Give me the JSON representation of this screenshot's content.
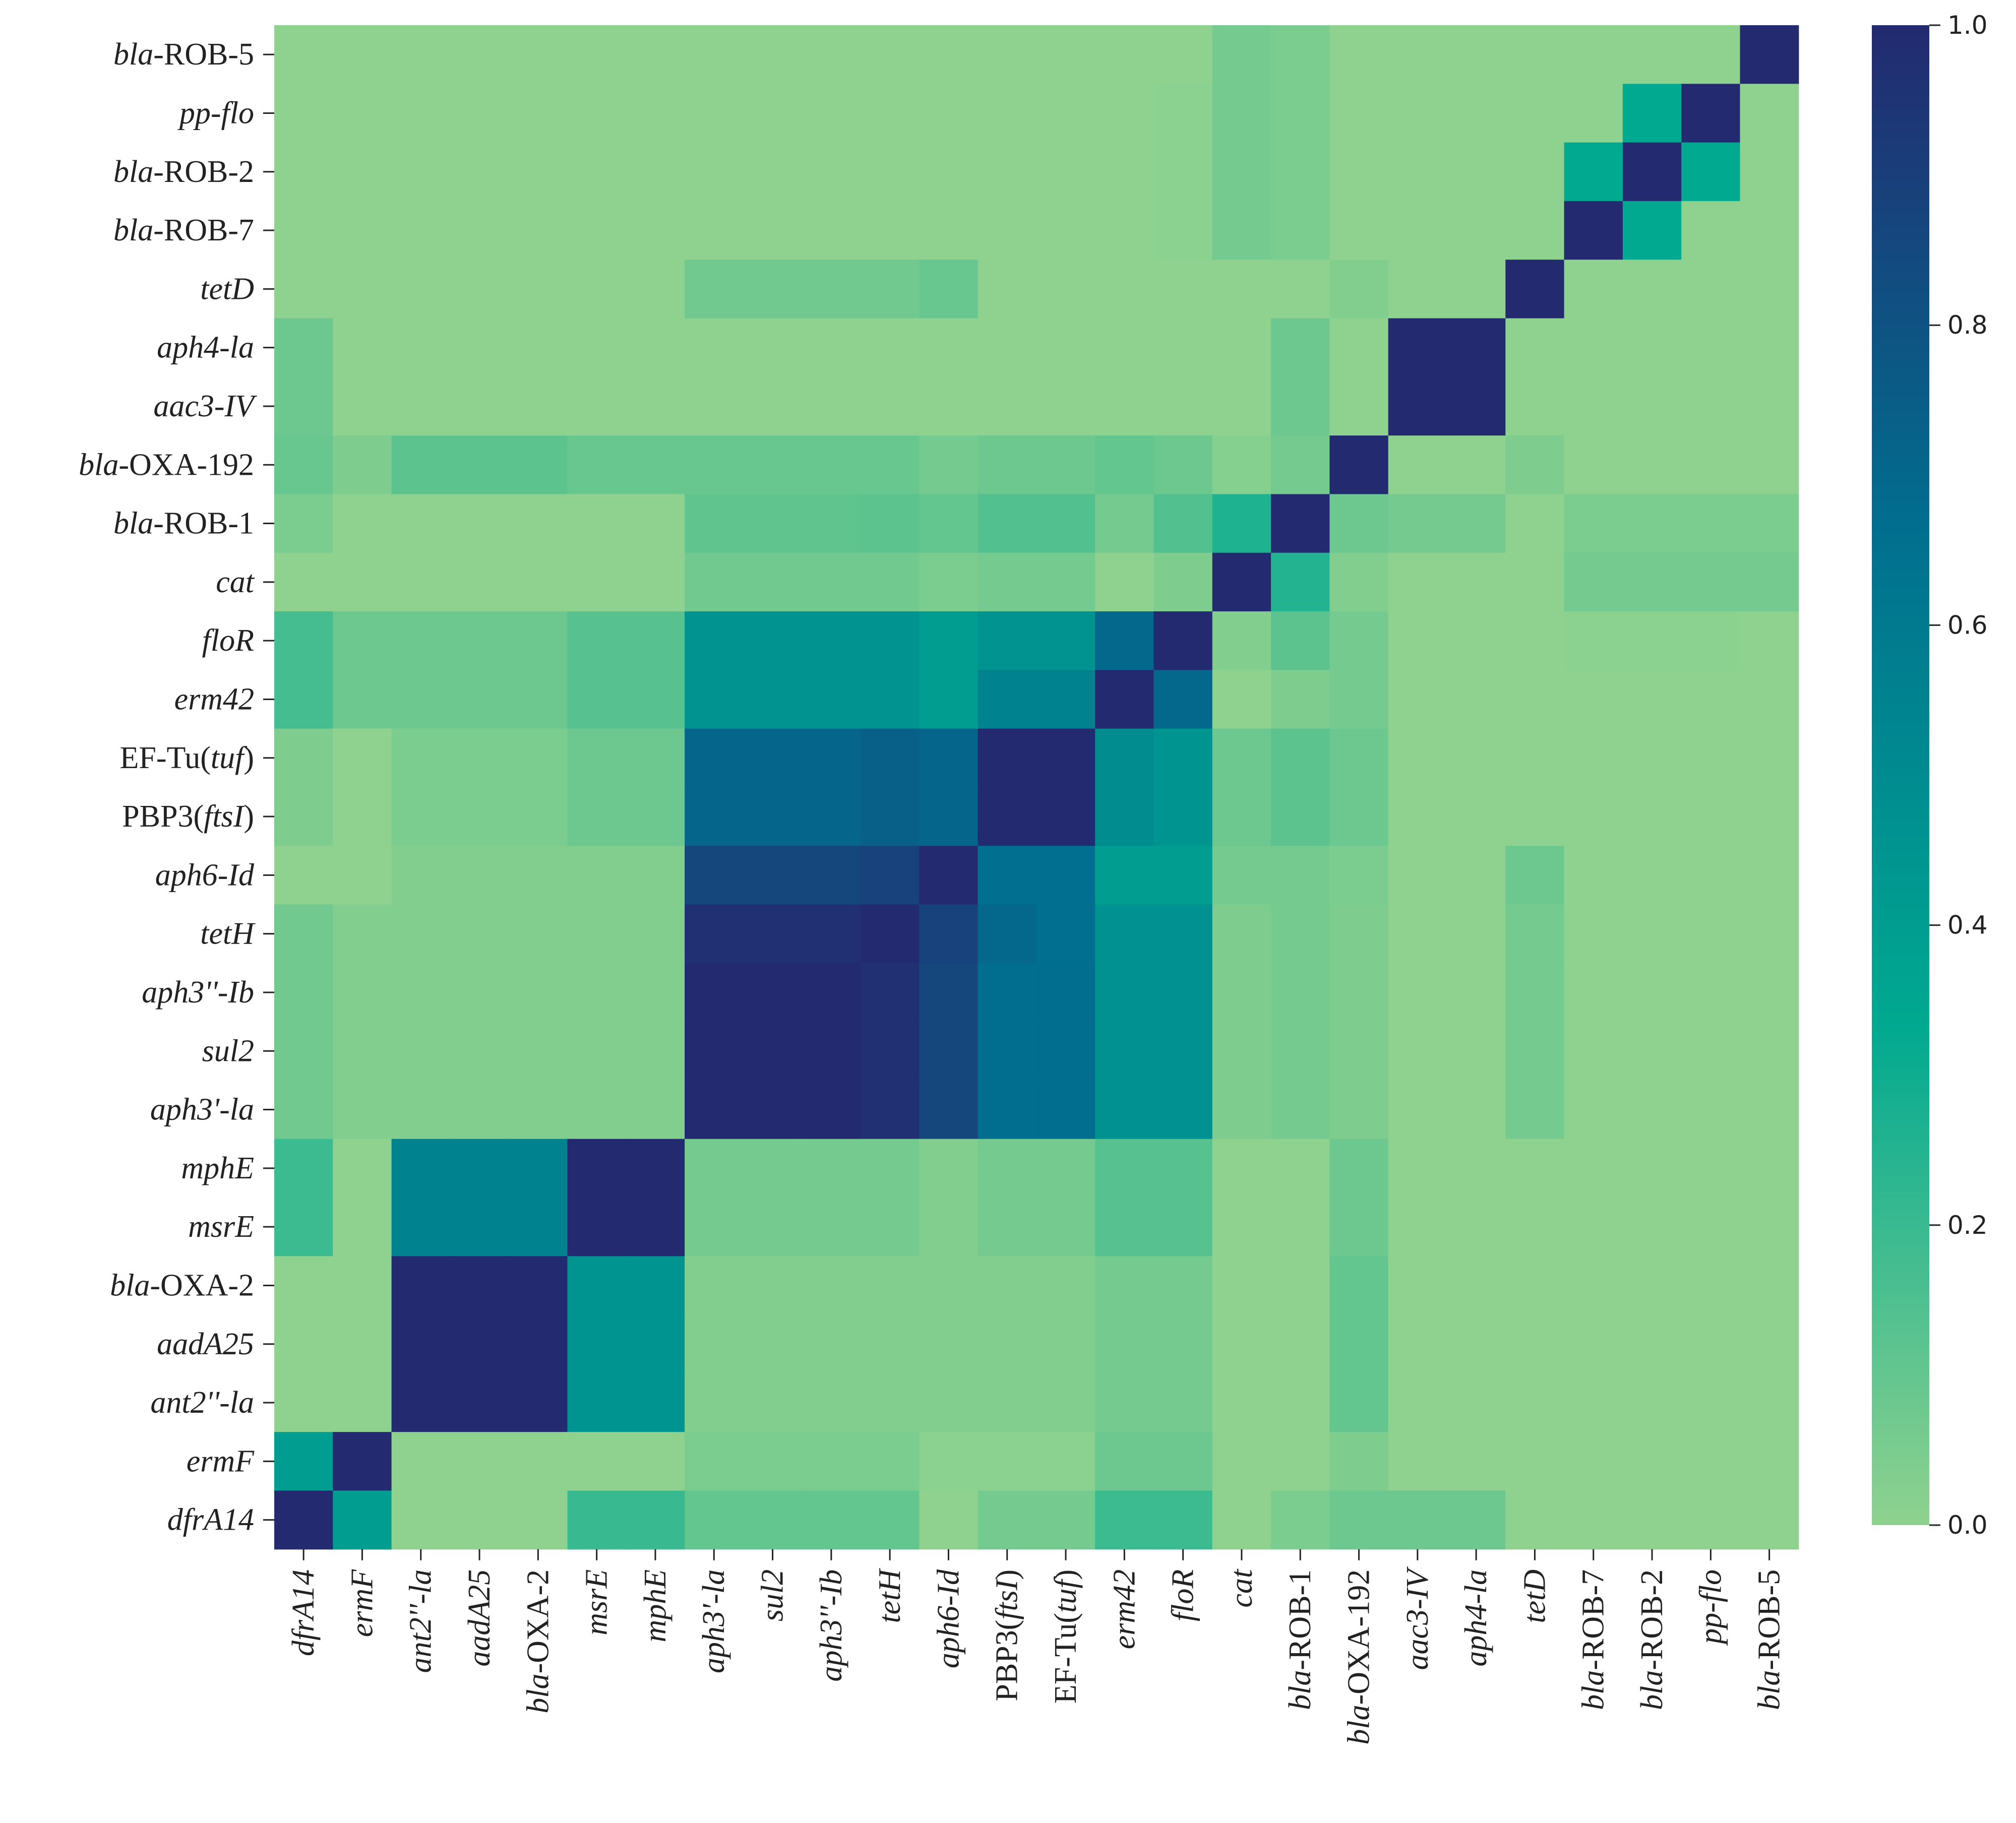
{
  "chart_data": {
    "type": "heatmap",
    "title": "",
    "xlabel": "",
    "ylabel": "",
    "x_labels": [
      {
        "parts": [
          {
            "t": "dfrA14",
            "i": true
          }
        ]
      },
      {
        "parts": [
          {
            "t": "ermF",
            "i": true
          }
        ]
      },
      {
        "parts": [
          {
            "t": "ant2''-la",
            "i": true
          }
        ]
      },
      {
        "parts": [
          {
            "t": "aadA25",
            "i": true
          }
        ]
      },
      {
        "parts": [
          {
            "t": "bla",
            "i": true
          },
          {
            "t": "-OXA-2",
            "i": false
          }
        ]
      },
      {
        "parts": [
          {
            "t": "msrE",
            "i": true
          }
        ]
      },
      {
        "parts": [
          {
            "t": "mphE",
            "i": true
          }
        ]
      },
      {
        "parts": [
          {
            "t": "aph3'-la",
            "i": true
          }
        ]
      },
      {
        "parts": [
          {
            "t": "sul2",
            "i": true
          }
        ]
      },
      {
        "parts": [
          {
            "t": "aph3''-Ib",
            "i": true
          }
        ]
      },
      {
        "parts": [
          {
            "t": "tetH",
            "i": true
          }
        ]
      },
      {
        "parts": [
          {
            "t": "aph6-Id",
            "i": true
          }
        ]
      },
      {
        "parts": [
          {
            "t": "PBP3(",
            "i": false
          },
          {
            "t": "ftsI",
            "i": true
          },
          {
            "t": ")",
            "i": false
          }
        ]
      },
      {
        "parts": [
          {
            "t": "EF-Tu(",
            "i": false
          },
          {
            "t": "tuf",
            "i": true
          },
          {
            "t": ")",
            "i": false
          }
        ]
      },
      {
        "parts": [
          {
            "t": "erm42",
            "i": true
          }
        ]
      },
      {
        "parts": [
          {
            "t": "floR",
            "i": true
          }
        ]
      },
      {
        "parts": [
          {
            "t": "cat",
            "i": true
          }
        ]
      },
      {
        "parts": [
          {
            "t": "bla",
            "i": true
          },
          {
            "t": "-ROB-1",
            "i": false
          }
        ]
      },
      {
        "parts": [
          {
            "t": "bla",
            "i": true
          },
          {
            "t": "-OXA-192",
            "i": false
          }
        ]
      },
      {
        "parts": [
          {
            "t": "aac3-IV",
            "i": true
          }
        ]
      },
      {
        "parts": [
          {
            "t": "aph4-la",
            "i": true
          }
        ]
      },
      {
        "parts": [
          {
            "t": "tetD",
            "i": true
          }
        ]
      },
      {
        "parts": [
          {
            "t": "bla",
            "i": true
          },
          {
            "t": "-ROB-7",
            "i": false
          }
        ]
      },
      {
        "parts": [
          {
            "t": "bla",
            "i": true
          },
          {
            "t": "-ROB-2",
            "i": false
          }
        ]
      },
      {
        "parts": [
          {
            "t": "pp-flo",
            "i": true
          }
        ]
      },
      {
        "parts": [
          {
            "t": "bla",
            "i": true
          },
          {
            "t": "-ROB-5",
            "i": false
          }
        ]
      }
    ],
    "y_labels": [
      {
        "parts": [
          {
            "t": "bla",
            "i": true
          },
          {
            "t": "-ROB-5",
            "i": false
          }
        ]
      },
      {
        "parts": [
          {
            "t": "pp-flo",
            "i": true
          }
        ]
      },
      {
        "parts": [
          {
            "t": "bla",
            "i": true
          },
          {
            "t": "-ROB-2",
            "i": false
          }
        ]
      },
      {
        "parts": [
          {
            "t": "bla",
            "i": true
          },
          {
            "t": "-ROB-7",
            "i": false
          }
        ]
      },
      {
        "parts": [
          {
            "t": "tetD",
            "i": true
          }
        ]
      },
      {
        "parts": [
          {
            "t": "aph4-la",
            "i": true
          }
        ]
      },
      {
        "parts": [
          {
            "t": "aac3-IV",
            "i": true
          }
        ]
      },
      {
        "parts": [
          {
            "t": "bla",
            "i": true
          },
          {
            "t": "-OXA-192",
            "i": false
          }
        ]
      },
      {
        "parts": [
          {
            "t": "bla",
            "i": true
          },
          {
            "t": "-ROB-1",
            "i": false
          }
        ]
      },
      {
        "parts": [
          {
            "t": "cat",
            "i": true
          }
        ]
      },
      {
        "parts": [
          {
            "t": "floR",
            "i": true
          }
        ]
      },
      {
        "parts": [
          {
            "t": "erm42",
            "i": true
          }
        ]
      },
      {
        "parts": [
          {
            "t": "EF-Tu(",
            "i": false
          },
          {
            "t": "tuf",
            "i": true
          },
          {
            "t": ")",
            "i": false
          }
        ]
      },
      {
        "parts": [
          {
            "t": "PBP3(",
            "i": false
          },
          {
            "t": "ftsI",
            "i": true
          },
          {
            "t": ")",
            "i": false
          }
        ]
      },
      {
        "parts": [
          {
            "t": "aph6-Id",
            "i": true
          }
        ]
      },
      {
        "parts": [
          {
            "t": "tetH",
            "i": true
          }
        ]
      },
      {
        "parts": [
          {
            "t": "aph3''-Ib",
            "i": true
          }
        ]
      },
      {
        "parts": [
          {
            "t": "sul2",
            "i": true
          }
        ]
      },
      {
        "parts": [
          {
            "t": "aph3'-la",
            "i": true
          }
        ]
      },
      {
        "parts": [
          {
            "t": "mphE",
            "i": true
          }
        ]
      },
      {
        "parts": [
          {
            "t": "msrE",
            "i": true
          }
        ]
      },
      {
        "parts": [
          {
            "t": "bla",
            "i": true
          },
          {
            "t": "-OXA-2",
            "i": false
          }
        ]
      },
      {
        "parts": [
          {
            "t": "aadA25",
            "i": true
          }
        ]
      },
      {
        "parts": [
          {
            "t": "ant2''-la",
            "i": true
          }
        ]
      },
      {
        "parts": [
          {
            "t": "ermF",
            "i": true
          }
        ]
      },
      {
        "parts": [
          {
            "t": "dfrA14",
            "i": true
          }
        ]
      }
    ],
    "values": [
      [
        0.0,
        0.0,
        0.0,
        0.0,
        0.0,
        0.0,
        0.0,
        0.0,
        0.0,
        0.0,
        0.0,
        0.0,
        0.0,
        0.0,
        0.0,
        0.0,
        0.06,
        0.05,
        0.0,
        0.0,
        0.0,
        0.0,
        0.0,
        0.0,
        0.0,
        1.0
      ],
      [
        0.0,
        0.0,
        0.0,
        0.0,
        0.0,
        0.0,
        0.0,
        0.0,
        0.0,
        0.0,
        0.0,
        0.0,
        0.0,
        0.0,
        0.0,
        0.01,
        0.06,
        0.05,
        0.0,
        0.0,
        0.0,
        0.0,
        0.0,
        0.33,
        1.0,
        0.0
      ],
      [
        0.0,
        0.0,
        0.0,
        0.0,
        0.0,
        0.0,
        0.0,
        0.0,
        0.0,
        0.0,
        0.0,
        0.0,
        0.0,
        0.0,
        0.0,
        0.01,
        0.06,
        0.05,
        0.0,
        0.0,
        0.0,
        0.0,
        0.33,
        1.0,
        0.33,
        0.0
      ],
      [
        0.0,
        0.0,
        0.0,
        0.0,
        0.0,
        0.0,
        0.0,
        0.0,
        0.0,
        0.0,
        0.0,
        0.0,
        0.0,
        0.0,
        0.0,
        0.01,
        0.06,
        0.05,
        0.0,
        0.0,
        0.0,
        0.0,
        1.0,
        0.33,
        0.0,
        0.0
      ],
      [
        0.0,
        0.0,
        0.0,
        0.0,
        0.0,
        0.0,
        0.0,
        0.07,
        0.07,
        0.07,
        0.07,
        0.09,
        0.0,
        0.0,
        0.0,
        0.0,
        0.0,
        0.0,
        0.03,
        0.0,
        0.0,
        1.0,
        0.0,
        0.0,
        0.0,
        0.0
      ],
      [
        0.08,
        0.0,
        0.0,
        0.0,
        0.0,
        0.0,
        0.0,
        0.0,
        0.0,
        0.0,
        0.0,
        0.0,
        0.0,
        0.0,
        0.0,
        0.0,
        0.0,
        0.08,
        0.0,
        1.0,
        1.0,
        0.0,
        0.0,
        0.0,
        0.0,
        0.0
      ],
      [
        0.08,
        0.0,
        0.0,
        0.0,
        0.0,
        0.0,
        0.0,
        0.0,
        0.0,
        0.0,
        0.0,
        0.0,
        0.0,
        0.0,
        0.0,
        0.0,
        0.0,
        0.08,
        0.0,
        1.0,
        1.0,
        0.0,
        0.0,
        0.0,
        0.0,
        0.0
      ],
      [
        0.09,
        0.04,
        0.12,
        0.12,
        0.12,
        0.09,
        0.09,
        0.09,
        0.09,
        0.09,
        0.09,
        0.06,
        0.08,
        0.08,
        0.1,
        0.08,
        0.02,
        0.06,
        1.0,
        0.0,
        0.0,
        0.04,
        0.0,
        0.0,
        0.0,
        0.0
      ],
      [
        0.05,
        0.0,
        0.0,
        0.0,
        0.0,
        0.0,
        0.0,
        0.11,
        0.11,
        0.11,
        0.12,
        0.1,
        0.14,
        0.14,
        0.06,
        0.14,
        0.26,
        1.0,
        0.08,
        0.06,
        0.06,
        0.0,
        0.05,
        0.05,
        0.05,
        0.05
      ],
      [
        0.0,
        0.0,
        0.0,
        0.0,
        0.0,
        0.0,
        0.0,
        0.07,
        0.07,
        0.07,
        0.07,
        0.05,
        0.06,
        0.06,
        0.0,
        0.04,
        1.0,
        0.25,
        0.03,
        0.0,
        0.0,
        0.0,
        0.06,
        0.06,
        0.06,
        0.06
      ],
      [
        0.17,
        0.08,
        0.08,
        0.08,
        0.08,
        0.13,
        0.13,
        0.46,
        0.46,
        0.46,
        0.46,
        0.4,
        0.46,
        0.46,
        0.7,
        1.0,
        0.03,
        0.12,
        0.06,
        0.0,
        0.0,
        0.0,
        0.01,
        0.01,
        0.01,
        0.0
      ],
      [
        0.17,
        0.08,
        0.08,
        0.08,
        0.08,
        0.13,
        0.13,
        0.46,
        0.46,
        0.46,
        0.46,
        0.4,
        0.55,
        0.55,
        1.0,
        0.7,
        0.0,
        0.04,
        0.06,
        0.0,
        0.0,
        0.0,
        0.0,
        0.0,
        0.0,
        0.0
      ],
      [
        0.04,
        0.0,
        0.05,
        0.05,
        0.05,
        0.08,
        0.08,
        0.71,
        0.71,
        0.71,
        0.74,
        0.71,
        1.0,
        1.0,
        0.5,
        0.45,
        0.08,
        0.12,
        0.08,
        0.0,
        0.0,
        0.0,
        0.0,
        0.0,
        0.0,
        0.0
      ],
      [
        0.04,
        0.0,
        0.05,
        0.05,
        0.05,
        0.08,
        0.08,
        0.71,
        0.71,
        0.71,
        0.74,
        0.71,
        1.0,
        1.0,
        0.5,
        0.45,
        0.08,
        0.12,
        0.08,
        0.0,
        0.0,
        0.0,
        0.0,
        0.0,
        0.0,
        0.0
      ],
      [
        0.0,
        0.0,
        0.03,
        0.03,
        0.03,
        0.03,
        0.03,
        0.86,
        0.86,
        0.86,
        0.88,
        1.0,
        0.66,
        0.66,
        0.4,
        0.4,
        0.06,
        0.06,
        0.05,
        0.0,
        0.0,
        0.08,
        0.0,
        0.0,
        0.0,
        0.0
      ],
      [
        0.07,
        0.03,
        0.03,
        0.03,
        0.03,
        0.03,
        0.03,
        0.97,
        0.97,
        0.97,
        1.0,
        0.88,
        0.7,
        0.66,
        0.47,
        0.47,
        0.04,
        0.06,
        0.04,
        0.0,
        0.0,
        0.06,
        0.0,
        0.0,
        0.0,
        0.0
      ],
      [
        0.07,
        0.03,
        0.03,
        0.03,
        0.03,
        0.03,
        0.03,
        1.0,
        1.0,
        1.0,
        0.97,
        0.86,
        0.67,
        0.67,
        0.47,
        0.47,
        0.04,
        0.06,
        0.04,
        0.0,
        0.0,
        0.06,
        0.0,
        0.0,
        0.0,
        0.0
      ],
      [
        0.07,
        0.03,
        0.03,
        0.03,
        0.03,
        0.03,
        0.03,
        1.0,
        1.0,
        1.0,
        0.97,
        0.86,
        0.67,
        0.67,
        0.47,
        0.47,
        0.04,
        0.06,
        0.04,
        0.0,
        0.0,
        0.06,
        0.0,
        0.0,
        0.0,
        0.0
      ],
      [
        0.07,
        0.03,
        0.03,
        0.03,
        0.03,
        0.03,
        0.03,
        1.0,
        1.0,
        1.0,
        0.97,
        0.86,
        0.67,
        0.67,
        0.47,
        0.47,
        0.04,
        0.06,
        0.04,
        0.0,
        0.0,
        0.06,
        0.0,
        0.0,
        0.0,
        0.0
      ],
      [
        0.19,
        0.0,
        0.55,
        0.55,
        0.55,
        1.0,
        1.0,
        0.06,
        0.06,
        0.06,
        0.06,
        0.03,
        0.06,
        0.06,
        0.13,
        0.13,
        0.0,
        0.0,
        0.08,
        0.0,
        0.0,
        0.0,
        0.0,
        0.0,
        0.0,
        0.0
      ],
      [
        0.19,
        0.0,
        0.55,
        0.55,
        0.55,
        1.0,
        1.0,
        0.06,
        0.06,
        0.06,
        0.06,
        0.03,
        0.06,
        0.06,
        0.13,
        0.13,
        0.0,
        0.0,
        0.08,
        0.0,
        0.0,
        0.0,
        0.0,
        0.0,
        0.0,
        0.0
      ],
      [
        0.0,
        0.0,
        1.0,
        1.0,
        1.0,
        0.45,
        0.45,
        0.03,
        0.03,
        0.03,
        0.03,
        0.03,
        0.03,
        0.03,
        0.06,
        0.06,
        0.0,
        0.0,
        0.1,
        0.0,
        0.0,
        0.0,
        0.0,
        0.0,
        0.0,
        0.0
      ],
      [
        0.0,
        0.0,
        1.0,
        1.0,
        1.0,
        0.45,
        0.45,
        0.03,
        0.03,
        0.03,
        0.03,
        0.03,
        0.03,
        0.03,
        0.06,
        0.06,
        0.0,
        0.0,
        0.1,
        0.0,
        0.0,
        0.0,
        0.0,
        0.0,
        0.0,
        0.0
      ],
      [
        0.0,
        0.0,
        1.0,
        1.0,
        1.0,
        0.45,
        0.45,
        0.03,
        0.03,
        0.03,
        0.03,
        0.03,
        0.03,
        0.03,
        0.06,
        0.06,
        0.0,
        0.0,
        0.1,
        0.0,
        0.0,
        0.0,
        0.0,
        0.0,
        0.0,
        0.0
      ],
      [
        0.4,
        1.0,
        0.0,
        0.0,
        0.0,
        0.0,
        0.0,
        0.05,
        0.05,
        0.05,
        0.05,
        0.01,
        0.01,
        0.01,
        0.08,
        0.08,
        0.0,
        0.0,
        0.04,
        0.0,
        0.0,
        0.0,
        0.0,
        0.0,
        0.0,
        0.0
      ],
      [
        1.0,
        0.4,
        0.0,
        0.0,
        0.0,
        0.2,
        0.2,
        0.1,
        0.1,
        0.1,
        0.1,
        0.0,
        0.06,
        0.06,
        0.19,
        0.19,
        0.0,
        0.05,
        0.08,
        0.08,
        0.08,
        0.0,
        0.0,
        0.0,
        0.0,
        0.0
      ]
    ],
    "vmin": 0.0,
    "vmax": 1.0,
    "colormap": [
      "#8fd28f",
      "#00a990",
      "#016e8f",
      "#232a70"
    ],
    "colorbar": {
      "ticks": [
        0.0,
        0.2,
        0.4,
        0.6,
        0.8,
        1.0
      ],
      "tick_labels": [
        "0.0",
        "0.2",
        "0.4",
        "0.6",
        "0.8",
        "1.0"
      ]
    },
    "grid": false,
    "legend": "colorbar at right"
  }
}
